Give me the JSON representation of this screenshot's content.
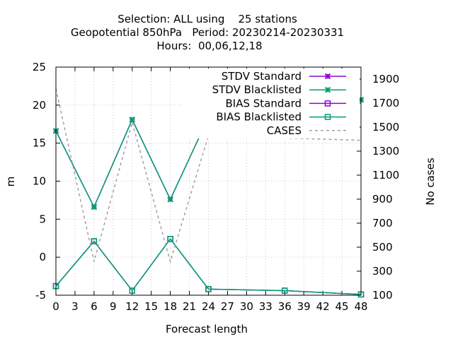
{
  "chart_data": {
    "type": "line",
    "title_lines": [
      "Selection: ALL using    25 stations",
      "Geopotential 850hPa   Period: 20230214-20230331",
      "Hours:  00,06,12,18"
    ],
    "xlabel": "Forecast length",
    "ylabel": "m",
    "y2label": "No cases",
    "xlim": [
      0,
      48
    ],
    "ylim": [
      -5,
      25
    ],
    "y2lim": [
      100,
      2000
    ],
    "x_ticks": [
      0,
      3,
      6,
      9,
      12,
      15,
      18,
      21,
      24,
      27,
      30,
      33,
      36,
      39,
      42,
      45,
      48
    ],
    "y_ticks": [
      -5,
      0,
      5,
      10,
      15,
      20,
      25
    ],
    "y2_ticks": [
      100,
      300,
      500,
      700,
      900,
      1100,
      1300,
      1500,
      1700,
      1900
    ],
    "legend_position": "top-right",
    "x": [
      0,
      6,
      12,
      18,
      24,
      36,
      48
    ],
    "series": [
      {
        "name": "STDV Standard",
        "axis": "y1",
        "color": "#9400d3",
        "marker": "x",
        "values": [
          16.6,
          6.6,
          18.1,
          7.6,
          18.4,
          19.4,
          20.7
        ]
      },
      {
        "name": "STDV Blacklisted",
        "axis": "y1",
        "color": "#009e73",
        "marker": "x",
        "values": [
          16.6,
          6.6,
          18.1,
          7.6,
          18.4,
          19.4,
          20.7
        ]
      },
      {
        "name": "BIAS Standard",
        "axis": "y1",
        "color": "#9400d3",
        "marker": "square",
        "values": [
          -3.8,
          2.1,
          -4.4,
          2.4,
          -4.2,
          -4.4,
          -4.9
        ]
      },
      {
        "name": "BIAS Blacklisted",
        "axis": "y1",
        "color": "#009e73",
        "marker": "square",
        "values": [
          -3.8,
          2.1,
          -4.4,
          2.4,
          -4.2,
          -4.4,
          -4.9
        ]
      },
      {
        "name": "CASES",
        "axis": "y2",
        "color": "#a0a0a0",
        "marker": "none",
        "dashed": true,
        "values": [
          1820,
          380,
          1540,
          380,
          1430,
          1410,
          1390
        ]
      }
    ]
  }
}
